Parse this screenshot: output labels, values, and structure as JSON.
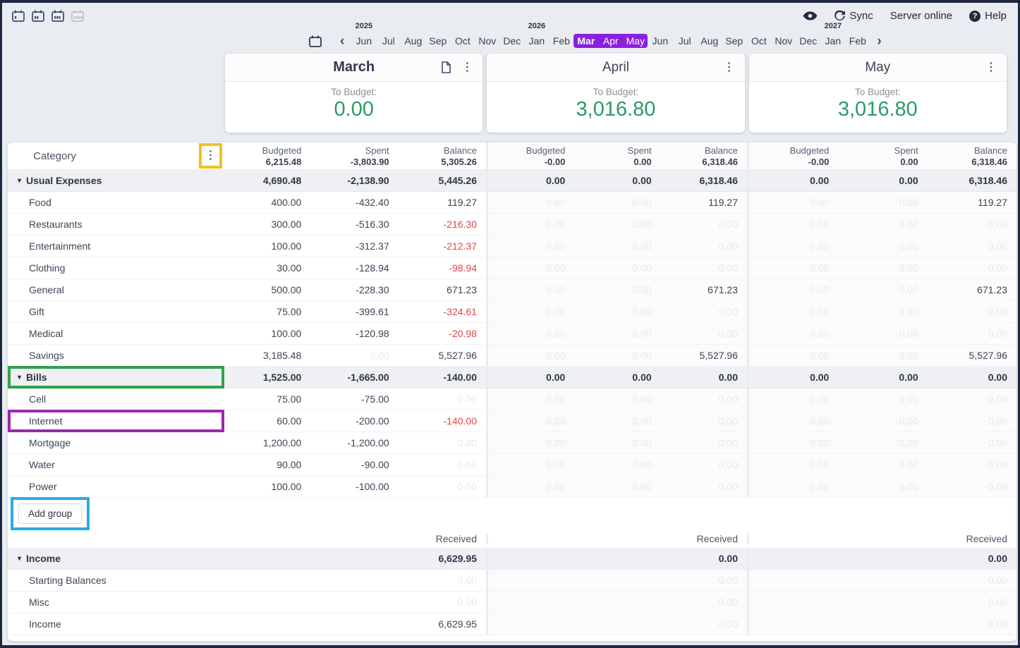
{
  "topbar": {
    "month_view_buttons": [
      {
        "name": "1-month-view",
        "disabled": false
      },
      {
        "name": "2-month-view",
        "disabled": false
      },
      {
        "name": "3-month-view",
        "disabled": false
      },
      {
        "name": "4-month-view",
        "disabled": true
      }
    ],
    "sync_label": "Sync",
    "server_status": "Server online",
    "help_label": "Help"
  },
  "glyphs": {
    "dots": "⋮",
    "chevron_left": "‹",
    "chevron_right": "›",
    "group_arrow": "▾",
    "help": "?"
  },
  "icons": {
    "privacy": "eye-icon",
    "sync": "rotate-icon",
    "help": "question-circle-icon",
    "notes": "document-icon",
    "menu": "vertical-dots-icon",
    "calendar": "calendar-icon"
  },
  "timeline": {
    "months": [
      {
        "label": "Jun",
        "year": "2025"
      },
      {
        "label": "Jul"
      },
      {
        "label": "Aug"
      },
      {
        "label": "Sep"
      },
      {
        "label": "Oct"
      },
      {
        "label": "Nov"
      },
      {
        "label": "Dec"
      },
      {
        "label": "Jan",
        "year": "2026"
      },
      {
        "label": "Feb"
      },
      {
        "label": "Mar",
        "selected": true,
        "current": true
      },
      {
        "label": "Apr",
        "selected": true
      },
      {
        "label": "May",
        "selected": true
      },
      {
        "label": "Jun"
      },
      {
        "label": "Jul"
      },
      {
        "label": "Aug"
      },
      {
        "label": "Sep"
      },
      {
        "label": "Oct"
      },
      {
        "label": "Nov"
      },
      {
        "label": "Dec"
      },
      {
        "label": "Jan",
        "year": "2027"
      },
      {
        "label": "Feb"
      }
    ]
  },
  "month_cards": [
    {
      "title": "March",
      "current": true,
      "to_budget_label": "To Budget:",
      "to_budget": "0.00"
    },
    {
      "title": "April",
      "current": false,
      "to_budget_label": "To Budget:",
      "to_budget": "3,016.80"
    },
    {
      "title": "May",
      "current": false,
      "to_budget_label": "To Budget:",
      "to_budget": "3,016.80"
    }
  ],
  "table": {
    "category_header": "Category",
    "column_headers": [
      "Budgeted",
      "Spent",
      "Balance"
    ],
    "month_totals": [
      {
        "budgeted": "6,215.48",
        "spent": "-3,803.90",
        "balance": "5,305.26"
      },
      {
        "budgeted": "-0.00",
        "spent": "0.00",
        "balance": "6,318.46"
      },
      {
        "budgeted": "-0.00",
        "spent": "0.00",
        "balance": "6,318.46"
      }
    ],
    "expense_rows": [
      {
        "name": "Usual Expenses",
        "group": true,
        "cells": [
          [
            "4,690.48",
            ""
          ],
          [
            "-2,138.90",
            ""
          ],
          [
            "5,445.26",
            ""
          ],
          [
            "0.00",
            ""
          ],
          [
            "0.00",
            ""
          ],
          [
            "6,318.46",
            ""
          ],
          [
            "0.00",
            ""
          ],
          [
            "0.00",
            ""
          ],
          [
            "6,318.46",
            ""
          ]
        ]
      },
      {
        "name": "Food",
        "cells": [
          [
            "400.00",
            ""
          ],
          [
            "-432.40",
            ""
          ],
          [
            "119.27",
            ""
          ],
          [
            "0.00",
            "faded"
          ],
          [
            "0.00",
            "faded"
          ],
          [
            "119.27",
            ""
          ],
          [
            "0.00",
            "faded"
          ],
          [
            "0.00",
            "faded"
          ],
          [
            "119.27",
            ""
          ]
        ]
      },
      {
        "name": "Restaurants",
        "cells": [
          [
            "300.00",
            ""
          ],
          [
            "-516.30",
            ""
          ],
          [
            "-216.30",
            "neg"
          ],
          [
            "0.00",
            "faded"
          ],
          [
            "0.00",
            "faded"
          ],
          [
            "0.00",
            "faded"
          ],
          [
            "0.00",
            "faded"
          ],
          [
            "0.00",
            "faded"
          ],
          [
            "0.00",
            "faded"
          ]
        ]
      },
      {
        "name": "Entertainment",
        "cells": [
          [
            "100.00",
            ""
          ],
          [
            "-312.37",
            ""
          ],
          [
            "-212.37",
            "neg"
          ],
          [
            "0.00",
            "faded"
          ],
          [
            "0.00",
            "faded"
          ],
          [
            "0.00",
            "faded"
          ],
          [
            "0.00",
            "faded"
          ],
          [
            "0.00",
            "faded"
          ],
          [
            "0.00",
            "faded"
          ]
        ]
      },
      {
        "name": "Clothing",
        "cells": [
          [
            "30.00",
            ""
          ],
          [
            "-128.94",
            ""
          ],
          [
            "-98.94",
            "neg"
          ],
          [
            "0.00",
            "faded"
          ],
          [
            "0.00",
            "faded"
          ],
          [
            "0.00",
            "faded"
          ],
          [
            "0.00",
            "faded"
          ],
          [
            "0.00",
            "faded"
          ],
          [
            "0.00",
            "faded"
          ]
        ]
      },
      {
        "name": "General",
        "cells": [
          [
            "500.00",
            ""
          ],
          [
            "-228.30",
            ""
          ],
          [
            "671.23",
            ""
          ],
          [
            "0.00",
            "faded"
          ],
          [
            "0.00",
            "faded"
          ],
          [
            "671.23",
            ""
          ],
          [
            "0.00",
            "faded"
          ],
          [
            "0.00",
            "faded"
          ],
          [
            "671.23",
            ""
          ]
        ]
      },
      {
        "name": "Gift",
        "cells": [
          [
            "75.00",
            ""
          ],
          [
            "-399.61",
            ""
          ],
          [
            "-324.61",
            "neg"
          ],
          [
            "0.00",
            "faded"
          ],
          [
            "0.00",
            "faded"
          ],
          [
            "0.00",
            "faded"
          ],
          [
            "0.00",
            "faded"
          ],
          [
            "0.00",
            "faded"
          ],
          [
            "0.00",
            "faded"
          ]
        ]
      },
      {
        "name": "Medical",
        "cells": [
          [
            "100.00",
            ""
          ],
          [
            "-120.98",
            ""
          ],
          [
            "-20.98",
            "neg"
          ],
          [
            "0.00",
            "faded"
          ],
          [
            "0.00",
            "faded"
          ],
          [
            "0.00",
            "faded"
          ],
          [
            "0.00",
            "faded"
          ],
          [
            "0.00",
            "faded"
          ],
          [
            "0.00",
            "faded"
          ]
        ]
      },
      {
        "name": "Savings",
        "cells": [
          [
            "3,185.48",
            ""
          ],
          [
            "0.00",
            "faded"
          ],
          [
            "5,527.96",
            ""
          ],
          [
            "0.00",
            "faded"
          ],
          [
            "0.00",
            "faded"
          ],
          [
            "5,527.96",
            ""
          ],
          [
            "0.00",
            "faded"
          ],
          [
            "0.00",
            "faded"
          ],
          [
            "5,527.96",
            ""
          ]
        ]
      },
      {
        "name": "Bills",
        "group": true,
        "highlight": "green",
        "cells": [
          [
            "1,525.00",
            ""
          ],
          [
            "-1,665.00",
            ""
          ],
          [
            "-140.00",
            ""
          ],
          [
            "0.00",
            ""
          ],
          [
            "0.00",
            ""
          ],
          [
            "0.00",
            ""
          ],
          [
            "0.00",
            ""
          ],
          [
            "0.00",
            ""
          ],
          [
            "0.00",
            ""
          ]
        ]
      },
      {
        "name": "Cell",
        "cells": [
          [
            "75.00",
            ""
          ],
          [
            "-75.00",
            ""
          ],
          [
            "0.00",
            "faded"
          ],
          [
            "0.00",
            "faded"
          ],
          [
            "0.00",
            "faded"
          ],
          [
            "0.00",
            "faded"
          ],
          [
            "0.00",
            "faded"
          ],
          [
            "0.00",
            "faded"
          ],
          [
            "0.00",
            "faded"
          ]
        ]
      },
      {
        "name": "Internet",
        "highlight": "purple",
        "cells": [
          [
            "60.00",
            ""
          ],
          [
            "-200.00",
            ""
          ],
          [
            "-140.00",
            "neg"
          ],
          [
            "0.00",
            "faded"
          ],
          [
            "0.00",
            "faded"
          ],
          [
            "0.00",
            "faded"
          ],
          [
            "0.00",
            "faded"
          ],
          [
            "0.00",
            "faded"
          ],
          [
            "0.00",
            "faded"
          ]
        ]
      },
      {
        "name": "Mortgage",
        "cells": [
          [
            "1,200.00",
            ""
          ],
          [
            "-1,200.00",
            ""
          ],
          [
            "0.00",
            "faded"
          ],
          [
            "0.00",
            "faded"
          ],
          [
            "0.00",
            "faded"
          ],
          [
            "0.00",
            "faded"
          ],
          [
            "0.00",
            "faded"
          ],
          [
            "0.00",
            "faded"
          ],
          [
            "0.00",
            "faded"
          ]
        ]
      },
      {
        "name": "Water",
        "cells": [
          [
            "90.00",
            ""
          ],
          [
            "-90.00",
            ""
          ],
          [
            "0.00",
            "faded"
          ],
          [
            "0.00",
            "faded"
          ],
          [
            "0.00",
            "faded"
          ],
          [
            "0.00",
            "faded"
          ],
          [
            "0.00",
            "faded"
          ],
          [
            "0.00",
            "faded"
          ],
          [
            "0.00",
            "faded"
          ]
        ]
      },
      {
        "name": "Power",
        "cells": [
          [
            "100.00",
            ""
          ],
          [
            "-100.00",
            ""
          ],
          [
            "0.00",
            "faded"
          ],
          [
            "0.00",
            "faded"
          ],
          [
            "0.00",
            "faded"
          ],
          [
            "0.00",
            "faded"
          ],
          [
            "0.00",
            "faded"
          ],
          [
            "0.00",
            "faded"
          ],
          [
            "0.00",
            "faded"
          ]
        ]
      }
    ],
    "add_group_label": "Add group",
    "received_label": "Received",
    "income_rows": [
      {
        "name": "Income",
        "group": true,
        "received": [
          [
            "6,629.95",
            ""
          ],
          [
            "0.00",
            ""
          ],
          [
            "0.00",
            ""
          ]
        ]
      },
      {
        "name": "Starting Balances",
        "received": [
          [
            "0.00",
            "faded"
          ],
          [
            "0.00",
            "faded"
          ],
          [
            "0.00",
            "faded"
          ]
        ]
      },
      {
        "name": "Misc",
        "received": [
          [
            "0.00",
            "faded"
          ],
          [
            "0.00",
            "faded"
          ],
          [
            "0.00",
            "faded"
          ]
        ]
      },
      {
        "name": "Income",
        "received": [
          [
            "6,629.95",
            ""
          ],
          [
            "0.00",
            "faded"
          ],
          [
            "0.00",
            "faded"
          ]
        ]
      }
    ]
  },
  "colors": {
    "accent_purple": "#8a1fdd",
    "to_budget_green": "#2b9b64",
    "negative_red": "#e04545",
    "highlight_yellow": "#f2c21c",
    "highlight_green": "#31a24c",
    "highlight_purple": "#9c27b0",
    "highlight_blue": "#29abe2",
    "frame_navy": "#1d2840"
  }
}
